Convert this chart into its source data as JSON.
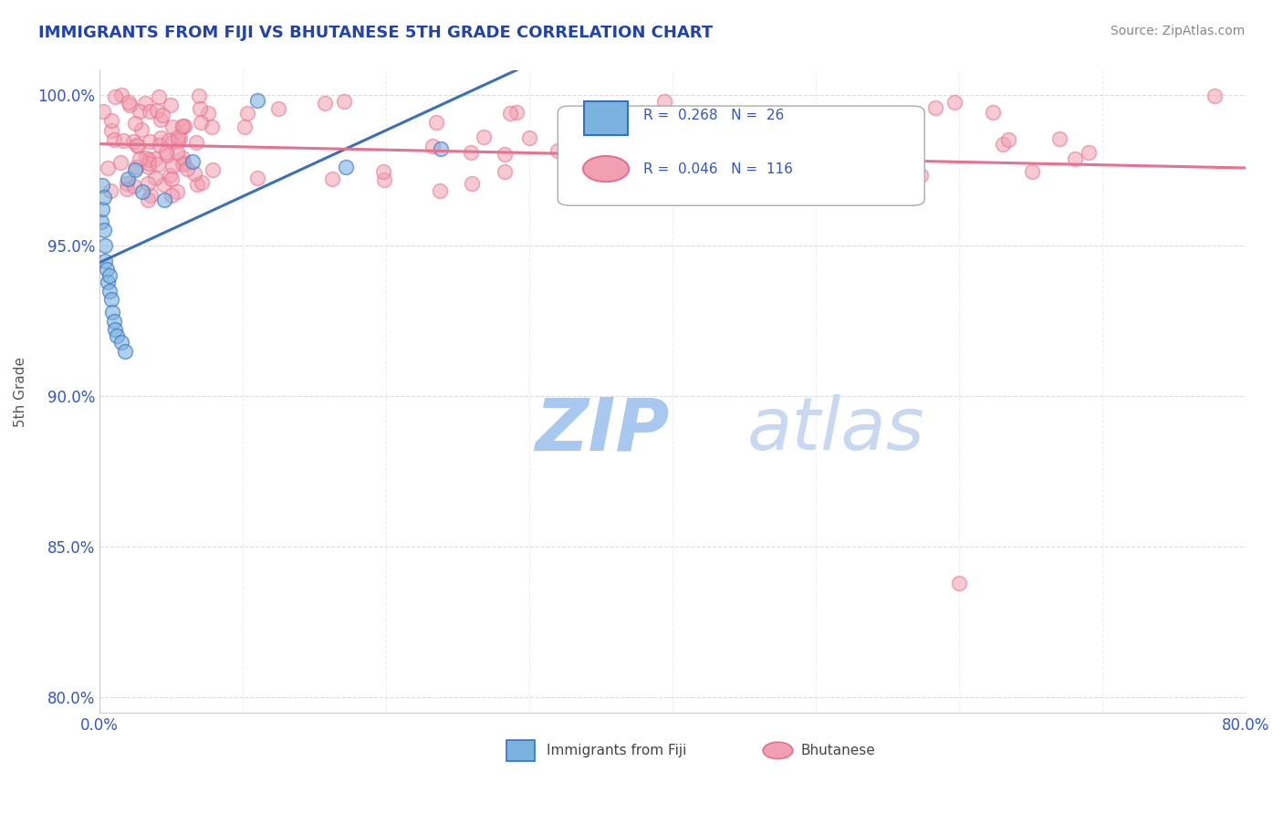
{
  "title": "IMMIGRANTS FROM FIJI VS BHUTANESE 5TH GRADE CORRELATION CHART",
  "source": "Source: ZipAtlas.com",
  "ylabel": "5th Grade",
  "legend_fiji": "Immigrants from Fiji",
  "legend_bhutanese": "Bhutanese",
  "fiji_R": 0.268,
  "fiji_N": 26,
  "bhutanese_R": 0.046,
  "bhutanese_N": 116,
  "xmin": 0.0,
  "xmax": 0.8,
  "ymin": 0.795,
  "ymax": 1.008,
  "yticks": [
    1.0,
    0.95,
    0.9,
    0.85,
    0.8
  ],
  "ytick_labels": [
    "100.0%",
    "95.0%",
    "90.0%",
    "85.0%",
    "80.0%"
  ],
  "fiji_color": "#7ab3e0",
  "bhutanese_color": "#f0a0b0",
  "fiji_line_color": "#3a6fbd",
  "bhutanese_line_color": "#e87090",
  "watermark_zip_color": "#a8c8f0",
  "watermark_atlas_color": "#c8d8f0",
  "title_color": "#2244aa",
  "axis_label_color": "#555555",
  "tick_label_color": "#3355cc",
  "grid_color": "#cccccc"
}
